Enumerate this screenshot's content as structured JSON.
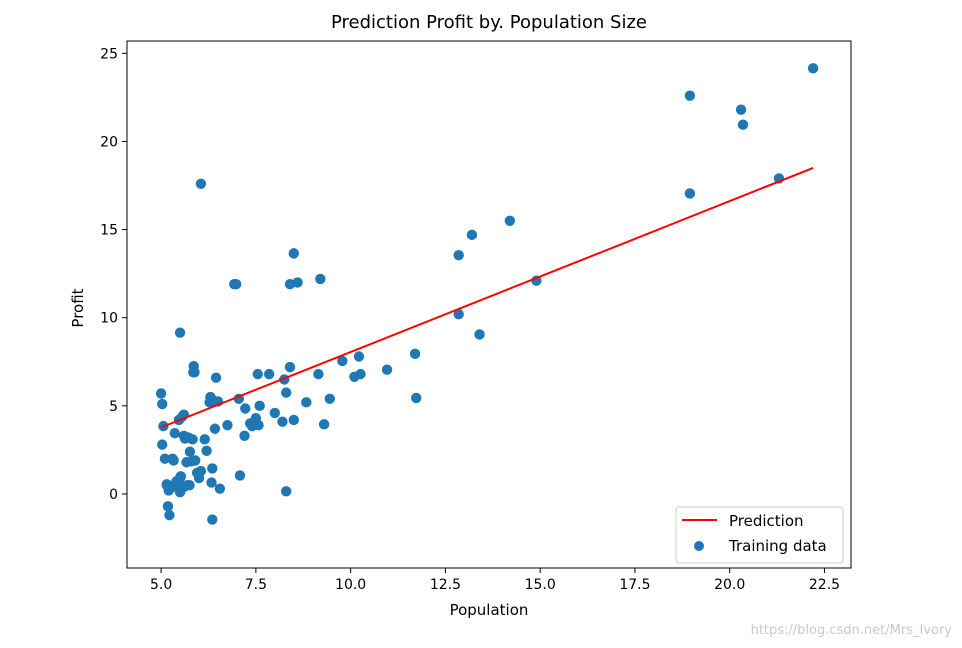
{
  "watermark": "https://blog.csdn.net/Mrs_Ivory",
  "colors": {
    "scatter": "#1f77b4",
    "line": "#ff0000",
    "axes": "#000000",
    "legend_border": "#cccccc"
  },
  "chart_data": {
    "type": "scatter",
    "title": "Prediction Profit by. Population Size",
    "xlabel": "Population",
    "ylabel": "Profit",
    "xlim": [
      4.1,
      23.2
    ],
    "ylim": [
      -4.2,
      25.7
    ],
    "xticks": [
      5.0,
      7.5,
      10.0,
      12.5,
      15.0,
      17.5,
      20.0,
      22.5
    ],
    "xtick_labels": [
      "5.0",
      "7.5",
      "10.0",
      "12.5",
      "15.0",
      "17.5",
      "20.0",
      "22.5"
    ],
    "yticks": [
      0,
      5,
      10,
      15,
      20,
      25
    ],
    "ytick_labels": [
      "0",
      "5",
      "10",
      "15",
      "20",
      "25"
    ],
    "grid": false,
    "legend_placement": "lower-right",
    "series": [
      {
        "name": "Prediction",
        "kind": "line",
        "x": [
          5.03,
          22.2
        ],
        "y": [
          3.8,
          18.5
        ]
      },
      {
        "name": "Training data",
        "kind": "scatter",
        "x": [
          22.2,
          18.95,
          20.3,
          20.35,
          21.3,
          18.95,
          6.05,
          14.2,
          13.2,
          12.85,
          8.5,
          8.4,
          8.6,
          9.2,
          6.98,
          12.85,
          13.4,
          14.9,
          5.5,
          5.0,
          5.03,
          5.03,
          5.06,
          5.1,
          5.15,
          5.18,
          5.2,
          5.22,
          5.3,
          5.33,
          5.36,
          5.4,
          5.43,
          5.47,
          5.5,
          5.52,
          5.56,
          5.6,
          5.6,
          5.63,
          5.67,
          5.7,
          5.72,
          5.76,
          5.8,
          5.83,
          5.86,
          5.88,
          5.9,
          5.95,
          6.0,
          6.05,
          6.15,
          6.2,
          6.28,
          6.3,
          6.33,
          6.35,
          6.38,
          6.42,
          6.45,
          6.5,
          6.55,
          6.75,
          6.93,
          7.05,
          7.08,
          7.2,
          7.22,
          7.35,
          7.4,
          7.5,
          7.55,
          7.57,
          7.6,
          7.85,
          8.0,
          8.2,
          8.25,
          8.3,
          8.4,
          8.5,
          8.83,
          9.15,
          9.3,
          9.45,
          9.78,
          10.1,
          10.22,
          10.26,
          10.96,
          11.7,
          11.73,
          6.35,
          8.3,
          5.5,
          5.6,
          5.75,
          5.4,
          5.2,
          5.15,
          5.85
        ],
        "y": [
          24.15,
          22.6,
          21.8,
          20.95,
          17.9,
          17.05,
          17.6,
          15.5,
          14.7,
          13.55,
          13.65,
          11.9,
          12.0,
          12.2,
          11.9,
          10.2,
          9.05,
          12.1,
          9.15,
          5.7,
          5.1,
          2.8,
          3.85,
          2.0,
          0.5,
          -0.7,
          0.2,
          -1.2,
          2.0,
          1.9,
          3.45,
          0.4,
          0.75,
          4.2,
          0.9,
          1.0,
          4.4,
          3.3,
          4.5,
          3.15,
          1.8,
          0.5,
          3.2,
          2.4,
          1.85,
          3.1,
          7.25,
          6.9,
          1.9,
          1.2,
          0.9,
          1.3,
          3.1,
          2.45,
          5.2,
          5.5,
          0.65,
          1.45,
          5.3,
          3.7,
          6.6,
          5.25,
          0.3,
          3.9,
          11.9,
          5.4,
          1.05,
          3.3,
          4.85,
          4.0,
          3.85,
          4.3,
          6.8,
          3.9,
          5.0,
          6.8,
          4.6,
          4.1,
          6.5,
          5.75,
          7.2,
          4.2,
          5.2,
          6.8,
          3.95,
          5.4,
          7.55,
          6.65,
          7.8,
          6.8,
          7.05,
          7.95,
          5.45,
          -1.45,
          0.15,
          0.1,
          0.4,
          0.5,
          0.7,
          0.3,
          0.55,
          6.9
        ]
      }
    ]
  }
}
